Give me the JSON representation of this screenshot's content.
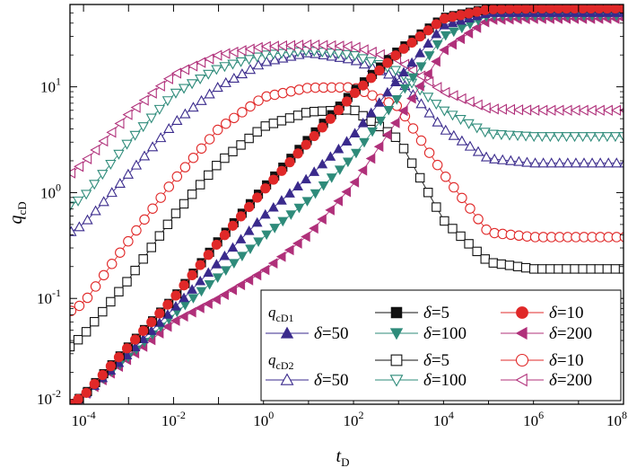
{
  "chart_data": {
    "type": "scatter",
    "title": "",
    "xlabel": "t",
    "xlabel_sub": "D",
    "ylabel": "q",
    "ylabel_sub": "cD",
    "xscale": "log",
    "yscale": "log",
    "xlim": [
      5e-05,
      100000000
    ],
    "ylim": [
      0.01,
      60
    ],
    "x_ticks": [
      0.0001,
      0.01,
      1,
      100,
      10000,
      1000000,
      100000000
    ],
    "x_tick_labels": [
      {
        "base": "10",
        "exp": "-4"
      },
      {
        "base": "10",
        "exp": "-2"
      },
      {
        "base": "10",
        "exp": "0"
      },
      {
        "base": "10",
        "exp": "2"
      },
      {
        "base": "10",
        "exp": "4"
      },
      {
        "base": "10",
        "exp": "6"
      },
      {
        "base": "10",
        "exp": "8"
      }
    ],
    "y_ticks": [
      0.01,
      0.1,
      1,
      10
    ],
    "y_tick_labels": [
      {
        "base": "10",
        "exp": "-2"
      },
      {
        "base": "10",
        "exp": "-1"
      },
      {
        "base": "10",
        "exp": "0"
      },
      {
        "base": "10",
        "exp": "1"
      }
    ],
    "grid": false,
    "legend_position": "bottom-right",
    "legend_group_labels": [
      {
        "base": "q",
        "sub": "cD1"
      },
      {
        "base": "q",
        "sub": "cD2"
      }
    ],
    "series": [
      {
        "name": "δ=50",
        "group": "qcD1",
        "marker": "triangle-up",
        "filled": true,
        "color": "#3a2a8c",
        "points": [
          [
            5e-05,
            0.01
          ],
          [
            0.0001,
            0.012
          ],
          [
            0.001,
            0.03
          ],
          [
            0.01,
            0.08
          ],
          [
            0.1,
            0.22
          ],
          [
            1,
            0.6
          ],
          [
            10,
            1.4
          ],
          [
            100,
            3.5
          ],
          [
            1000,
            12
          ],
          [
            10000,
            38
          ],
          [
            100000,
            50
          ],
          [
            1000000,
            50
          ],
          [
            100000000,
            50
          ]
        ]
      },
      {
        "name": "δ=100",
        "group": "qcD1",
        "marker": "triangle-down",
        "filled": true,
        "color": "#2e8b7a",
        "points": [
          [
            5e-05,
            0.01
          ],
          [
            0.0001,
            0.012
          ],
          [
            0.001,
            0.028
          ],
          [
            0.01,
            0.07
          ],
          [
            0.1,
            0.16
          ],
          [
            1,
            0.38
          ],
          [
            10,
            0.85
          ],
          [
            100,
            2.2
          ],
          [
            1000,
            8
          ],
          [
            10000,
            30
          ],
          [
            100000,
            47
          ],
          [
            1000000,
            47
          ],
          [
            100000000,
            47
          ]
        ]
      },
      {
        "name": "δ=200",
        "group": "qcD1",
        "marker": "triangle-left",
        "filled": true,
        "color": "#b0307a",
        "points": [
          [
            5e-05,
            0.01
          ],
          [
            0.0001,
            0.012
          ],
          [
            0.001,
            0.027
          ],
          [
            0.01,
            0.06
          ],
          [
            0.1,
            0.1
          ],
          [
            1,
            0.18
          ],
          [
            10,
            0.4
          ],
          [
            100,
            1.2
          ],
          [
            1000,
            5
          ],
          [
            10000,
            22
          ],
          [
            100000,
            43
          ],
          [
            1000000,
            44
          ],
          [
            100000000,
            44
          ]
        ]
      },
      {
        "name": "δ=5",
        "group": "qcD1",
        "marker": "square",
        "filled": true,
        "color": "#111111",
        "points": [
          [
            5e-05,
            0.01
          ],
          [
            0.0001,
            0.012
          ],
          [
            0.001,
            0.035
          ],
          [
            0.01,
            0.1
          ],
          [
            0.1,
            0.35
          ],
          [
            1,
            1.1
          ],
          [
            10,
            3.2
          ],
          [
            100,
            9
          ],
          [
            1000,
            22
          ],
          [
            10000,
            45
          ],
          [
            100000,
            55
          ],
          [
            1000000,
            56
          ],
          [
            100000000,
            56
          ]
        ]
      },
      {
        "name": "δ=10",
        "group": "qcD1",
        "marker": "circle",
        "filled": true,
        "color": "#e02828",
        "points": [
          [
            5e-05,
            0.01
          ],
          [
            0.0001,
            0.012
          ],
          [
            0.001,
            0.035
          ],
          [
            0.01,
            0.1
          ],
          [
            0.1,
            0.34
          ],
          [
            1,
            1.05
          ],
          [
            10,
            3
          ],
          [
            100,
            8.5
          ],
          [
            1000,
            21
          ],
          [
            10000,
            44
          ],
          [
            100000,
            54
          ],
          [
            1000000,
            55
          ],
          [
            100000000,
            55
          ]
        ]
      },
      {
        "name": "δ=50",
        "group": "qcD2",
        "marker": "triangle-up",
        "filled": false,
        "color": "#3a2a8c",
        "points": [
          [
            5e-05,
            0.42
          ],
          [
            0.0001,
            0.5
          ],
          [
            0.001,
            1.5
          ],
          [
            0.01,
            4.5
          ],
          [
            0.1,
            10
          ],
          [
            1,
            17
          ],
          [
            10,
            21
          ],
          [
            100,
            18
          ],
          [
            1000,
            12
          ],
          [
            10000,
            4
          ],
          [
            100000,
            2.1
          ],
          [
            1000000,
            1.9
          ],
          [
            100000000,
            1.9
          ]
        ]
      },
      {
        "name": "δ=100",
        "group": "qcD2",
        "marker": "triangle-down",
        "filled": false,
        "color": "#2e8b7a",
        "points": [
          [
            5e-05,
            0.75
          ],
          [
            0.0001,
            0.9
          ],
          [
            0.001,
            3
          ],
          [
            0.01,
            8.5
          ],
          [
            0.1,
            15
          ],
          [
            1,
            20
          ],
          [
            10,
            22
          ],
          [
            100,
            20
          ],
          [
            1000,
            14
          ],
          [
            10000,
            6
          ],
          [
            100000,
            3.6
          ],
          [
            1000000,
            3.4
          ],
          [
            100000000,
            3.4
          ]
        ]
      },
      {
        "name": "δ=200",
        "group": "qcD2",
        "marker": "triangle-left",
        "filled": false,
        "color": "#b0307a",
        "points": [
          [
            5e-05,
            1.5
          ],
          [
            0.0001,
            1.9
          ],
          [
            0.001,
            5.5
          ],
          [
            0.01,
            13
          ],
          [
            0.1,
            20
          ],
          [
            1,
            24
          ],
          [
            10,
            25
          ],
          [
            100,
            24
          ],
          [
            1000,
            18
          ],
          [
            10000,
            9
          ],
          [
            100000,
            6.2
          ],
          [
            1000000,
            6
          ],
          [
            100000000,
            6
          ]
        ]
      },
      {
        "name": "δ=5",
        "group": "qcD2",
        "marker": "square",
        "filled": false,
        "color": "#111111",
        "points": [
          [
            5e-05,
            0.035
          ],
          [
            0.0001,
            0.045
          ],
          [
            0.001,
            0.15
          ],
          [
            0.01,
            0.6
          ],
          [
            0.1,
            1.9
          ],
          [
            1,
            4.2
          ],
          [
            10,
            5.8
          ],
          [
            100,
            6.1
          ],
          [
            1000,
            3.2
          ],
          [
            10000,
            0.55
          ],
          [
            100000,
            0.22
          ],
          [
            1000000,
            0.19
          ],
          [
            100000000,
            0.19
          ]
        ]
      },
      {
        "name": "δ=10",
        "group": "qcD2",
        "marker": "circle",
        "filled": false,
        "color": "#e02828",
        "points": [
          [
            5e-05,
            0.075
          ],
          [
            0.0001,
            0.09
          ],
          [
            0.001,
            0.35
          ],
          [
            0.01,
            1.3
          ],
          [
            0.1,
            4
          ],
          [
            1,
            8
          ],
          [
            10,
            9.8
          ],
          [
            100,
            9.9
          ],
          [
            1000,
            6.5
          ],
          [
            10000,
            1.5
          ],
          [
            100000,
            0.42
          ],
          [
            1000000,
            0.38
          ],
          [
            100000000,
            0.38
          ]
        ]
      }
    ]
  },
  "legend": {
    "rows": [
      {
        "left_label": {
          "base": "q",
          "sub": "cD1"
        },
        "items": [
          {
            "series_index": 3,
            "label": "δ=5"
          },
          {
            "series_index": 4,
            "label": "δ=10"
          }
        ]
      },
      {
        "items": [
          {
            "series_index": 0,
            "label": "δ=50"
          },
          {
            "series_index": 1,
            "label": "δ=100"
          },
          {
            "series_index": 2,
            "label": "δ=200"
          }
        ]
      },
      {
        "left_label": {
          "base": "q",
          "sub": "cD2"
        },
        "items": [
          {
            "series_index": 8,
            "label": "δ=5"
          },
          {
            "series_index": 9,
            "label": "δ=10"
          }
        ]
      },
      {
        "items": [
          {
            "series_index": 5,
            "label": "δ=50"
          },
          {
            "series_index": 6,
            "label": "δ=100"
          },
          {
            "series_index": 7,
            "label": "δ=200"
          }
        ]
      }
    ]
  }
}
